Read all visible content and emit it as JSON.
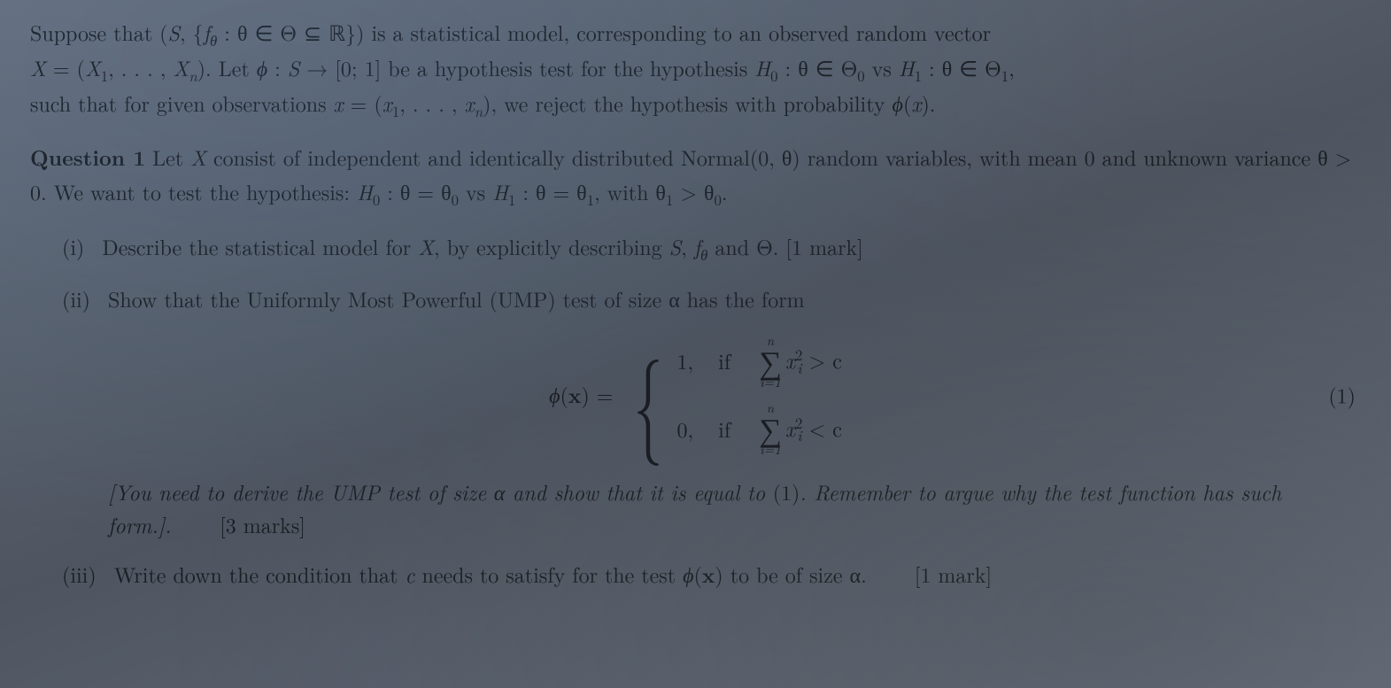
{
  "intro": {
    "line1_a": "Suppose that (",
    "line1_b": ", {",
    "line1_c": " : θ ∈ Θ ⊆ ℝ}) is a statistical model, corresponding to an observed random vector",
    "line2_a": " = (",
    "line2_b": ", . . . , ",
    "line2_c": "). Let ",
    "line2_d": " : ",
    "line2_e": " → [0; 1] be a hypothesis test for the hypothesis ",
    "line2_f": " : θ ∈ Θ",
    "line2_g": " vs ",
    "line2_h": " : θ ∈ Θ",
    "line3_a": "such that for given observations ",
    "line3_b": " = (",
    "line3_c": ", . . . , ",
    "line3_d": "), we reject the hypothesis with probability ",
    "line3_e": "(",
    "line3_f": ")."
  },
  "q1": {
    "label": "Question 1",
    "body_a": " Let ",
    "body_b": " consist of independent and identically distributed Normal(0, θ) random variables, with mean 0 and unknown variance θ > 0. We want to test the hypothesis: ",
    "body_c": " : θ = θ",
    "body_d": " vs ",
    "body_e": " : θ = θ",
    "body_f": ", with θ",
    "body_g": " > θ",
    "body_h": "."
  },
  "i": {
    "num": "(i)",
    "text_a": "Describe the statistical model for ",
    "text_b": ", by explicitly describing ",
    "text_c": ", ",
    "text_d": " and Θ. ",
    "marks": "[1 mark]"
  },
  "ii": {
    "num": "(ii)",
    "text": "Show that the Uniformly Most Powerful (UMP) test of size α has the form"
  },
  "eq": {
    "phi": "ϕ",
    "x": "x",
    "eq": "=",
    "one": "1,",
    "zero": "0,",
    "iftxt": "if",
    "n": "n",
    "idx": "i=1",
    "xi": "x",
    "sq": "2",
    "sub_i": "i",
    "gt": "> c",
    "lt": "< c",
    "num": "(1)"
  },
  "hint": {
    "a": "[You need to derive the UMP test of size α and show that it is equal to ",
    "b": "(1)",
    "c": ". Remember to argue why the test function has such form.].",
    "marks": "[3 marks]"
  },
  "iii": {
    "num": "(iii)",
    "text_a": "Write down the condition that ",
    "text_b": " needs to satisfy for the test ",
    "text_c": "(",
    "text_d": ") to be of size α.",
    "marks": "[1 mark]"
  },
  "sym": {
    "S": "S",
    "f": "f",
    "theta": "θ",
    "X": "X",
    "X1": "X",
    "Xn": "X",
    "phi": "ϕ",
    "H0": "H",
    "H1": "H",
    "x": "x",
    "x1": "x",
    "xn": "x",
    "c": "c",
    "n": "n",
    "zero": "0",
    "one": "1"
  }
}
